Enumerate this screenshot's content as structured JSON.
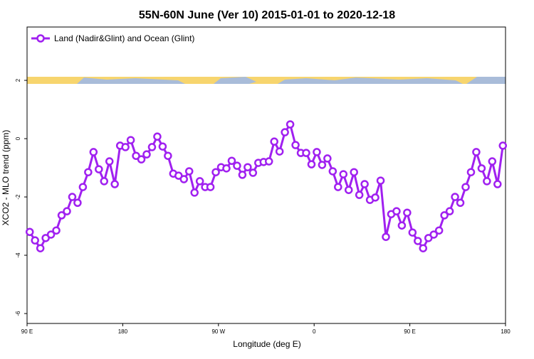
{
  "chart_data": {
    "type": "line",
    "title": "55N-60N June (Ver 10)   2015-01-01 to 2020-12-18",
    "xlabel": "Longitude (deg E)",
    "ylabel": "XCO2 - MLO trend (ppm)",
    "xlim": [
      90,
      540
    ],
    "xticks": [
      {
        "value": 90,
        "label": "90 E"
      },
      180,
      {
        "value": 270,
        "label": "90 W"
      },
      {
        "value": 360,
        "label": "0"
      },
      {
        "value": 450,
        "label": "90 E"
      },
      {
        "value": 540,
        "label": "180"
      }
    ],
    "ylim": [
      -6.34,
      3.83
    ],
    "yticks": [
      -6,
      -4,
      -2,
      0,
      2
    ],
    "legend": "top-left",
    "x": [
      92.5,
      97.5,
      102.5,
      107.5,
      112.5,
      117.5,
      122.5,
      127.5,
      132.5,
      137.5,
      142.5,
      147.5,
      152.5,
      157.5,
      162.5,
      167.5,
      172.5,
      177.5,
      182.5,
      187.5,
      192.5,
      197.5,
      202.5,
      207.5,
      212.5,
      217.5,
      222.5,
      227.5,
      232.5,
      237.5,
      242.5,
      247.5,
      252.5,
      257.5,
      262.5,
      267.5,
      272.5,
      277.5,
      282.5,
      287.5,
      292.5,
      297.5,
      302.5,
      307.5,
      312.5,
      317.5,
      322.5,
      327.5,
      332.5,
      337.5,
      342.5,
      347.5,
      352.5,
      357.5,
      362.5,
      367.5,
      372.5,
      377.5,
      382.5,
      387.5,
      392.5,
      397.5,
      402.5,
      407.5,
      412.5,
      417.5,
      422.5,
      427.5,
      432.5,
      437.5,
      442.5,
      447.5,
      452.5,
      457.5,
      462.5,
      467.5,
      472.5,
      477.5,
      482.5,
      487.5,
      492.5,
      497.5,
      502.5,
      507.5,
      512.5,
      517.5,
      522.5,
      527.5,
      532.5,
      537.5
    ],
    "series": [
      {
        "name": "Land (Nadir&Glint) and Ocean (Glint)",
        "color": "#a020f0",
        "values": [
          -3.2,
          -3.49,
          -3.76,
          -3.41,
          -3.29,
          -3.15,
          -2.63,
          -2.49,
          -2.0,
          -2.2,
          -1.66,
          -1.15,
          -0.46,
          -1.05,
          -1.46,
          -0.78,
          -1.56,
          -0.24,
          -0.29,
          -0.05,
          -0.59,
          -0.71,
          -0.54,
          -0.29,
          0.07,
          -0.27,
          -0.59,
          -1.2,
          -1.27,
          -1.39,
          -1.12,
          -1.85,
          -1.46,
          -1.66,
          -1.66,
          -1.15,
          -0.98,
          -1.02,
          -0.76,
          -0.93,
          -1.24,
          -0.98,
          -1.17,
          -0.83,
          -0.8,
          -0.78,
          -0.1,
          -0.44,
          0.22,
          0.49,
          -0.22,
          -0.49,
          -0.49,
          -0.88,
          -0.46,
          -0.9,
          -0.68,
          -1.12,
          -1.66,
          -1.22,
          -1.76,
          -1.15,
          -1.93,
          -1.56,
          -2.1,
          -2.02,
          -1.44,
          -3.37,
          -2.59,
          -2.49,
          -2.98,
          -2.54,
          -3.22,
          -3.51,
          -3.76,
          -3.41,
          -3.29,
          -3.15,
          -2.63,
          -2.49,
          -2.0,
          -2.2,
          -1.66,
          -1.15,
          -0.46,
          -1.02,
          -1.46,
          -0.78,
          -1.56,
          -0.24
        ]
      }
    ]
  }
}
